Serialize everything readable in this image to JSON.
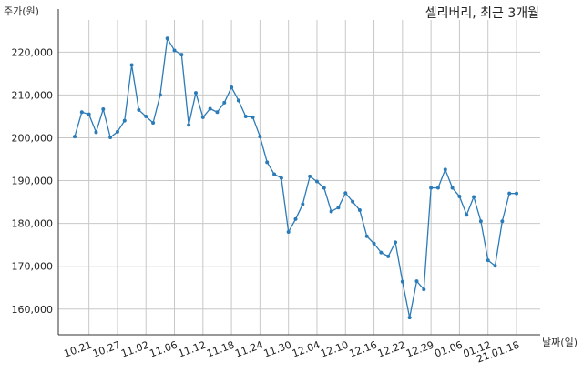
{
  "chart_data": {
    "type": "line",
    "title": "셀리버리, 최근 3개월",
    "ylabel": "주가(원)",
    "xlabel": "날짜(일)",
    "ylim": [
      154000,
      229000
    ],
    "yticks": [
      160000,
      170000,
      180000,
      190000,
      200000,
      210000,
      220000
    ],
    "ytick_labels": [
      "160,000",
      "170,000",
      "180,000",
      "190,000",
      "200,000",
      "210,000",
      "220,000"
    ],
    "xtick_labels": [
      "10.21",
      "10.27",
      "11.02",
      "11.06",
      "11.12",
      "11.18",
      "11.24",
      "11.30",
      "12.04",
      "12.10",
      "12.16",
      "12.22",
      "12.29",
      "01.06",
      "01.12",
      "21.01.18"
    ],
    "xtick_indices": [
      2,
      6,
      10,
      14,
      18,
      22,
      26,
      30,
      34,
      38,
      42,
      46,
      50,
      54,
      58,
      62
    ],
    "x_count": 63,
    "grid": true,
    "line_color": "#2b7bb9",
    "series": [
      {
        "values": [
          200300,
          206000,
          205500,
          201300,
          206700,
          200100,
          201400,
          204000,
          217000,
          206500,
          205000,
          203500,
          210000,
          223200,
          220400,
          219400,
          203000,
          210500,
          204800,
          206800,
          206000,
          208200,
          211800,
          208700,
          205000,
          204800,
          200300,
          194300,
          191500,
          190600,
          178000,
          181000,
          184500,
          191000,
          189800,
          188300,
          182800,
          183700,
          187100,
          185100,
          183100,
          177000,
          175300,
          173200,
          172300,
          175600,
          166400,
          158000,
          166500,
          164600,
          188300,
          188300,
          192600,
          188300,
          186300,
          182000,
          186200,
          180500,
          171400,
          170100,
          180500,
          187000,
          187000
        ]
      }
    ]
  }
}
